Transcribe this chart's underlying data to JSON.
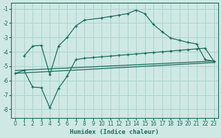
{
  "xlabel": "Humidex (Indice chaleur)",
  "bg_color": "#cfe8e4",
  "grid_color": "#a8d4ce",
  "line_color": "#1a6b5a",
  "xlim": [
    -0.5,
    23.5
  ],
  "ylim": [
    -8.6,
    -0.6
  ],
  "yticks": [
    -8,
    -7,
    -6,
    -5,
    -4,
    -3,
    -2,
    -1
  ],
  "xticks": [
    0,
    1,
    2,
    3,
    4,
    5,
    6,
    7,
    8,
    9,
    10,
    11,
    12,
    13,
    14,
    15,
    16,
    17,
    18,
    19,
    20,
    21,
    22,
    23
  ],
  "curve1_x": [
    1,
    2,
    3,
    4,
    5,
    6,
    7,
    8,
    10,
    11,
    12,
    13,
    14,
    15,
    16,
    17,
    18,
    19,
    20,
    21,
    22,
    23
  ],
  "curve1_y": [
    -4.3,
    -3.6,
    -3.55,
    -5.6,
    -3.6,
    -3.0,
    -2.2,
    -1.8,
    -1.65,
    -1.55,
    -1.45,
    -1.35,
    -1.1,
    -1.35,
    -2.1,
    -2.6,
    -3.05,
    -3.2,
    -3.35,
    -3.45,
    -4.55,
    -4.65
  ],
  "curve2_x": [
    0,
    1,
    2,
    3,
    4,
    5,
    6,
    7,
    8,
    9,
    10,
    11,
    12,
    13,
    14,
    15,
    16,
    17,
    18,
    19,
    20,
    21,
    22,
    23
  ],
  "curve2_y": [
    -5.5,
    -5.3,
    -6.45,
    -6.5,
    -7.9,
    -6.55,
    -5.7,
    -4.55,
    -4.45,
    -4.4,
    -4.35,
    -4.3,
    -4.25,
    -4.2,
    -4.15,
    -4.1,
    -4.05,
    -4.0,
    -3.95,
    -3.9,
    -3.85,
    -3.8,
    -3.75,
    -4.65
  ],
  "line3_x": [
    0,
    23
  ],
  "line3_y": [
    -5.3,
    -4.65
  ],
  "line4_x": [
    0,
    23
  ],
  "line4_y": [
    -5.5,
    -4.75
  ]
}
